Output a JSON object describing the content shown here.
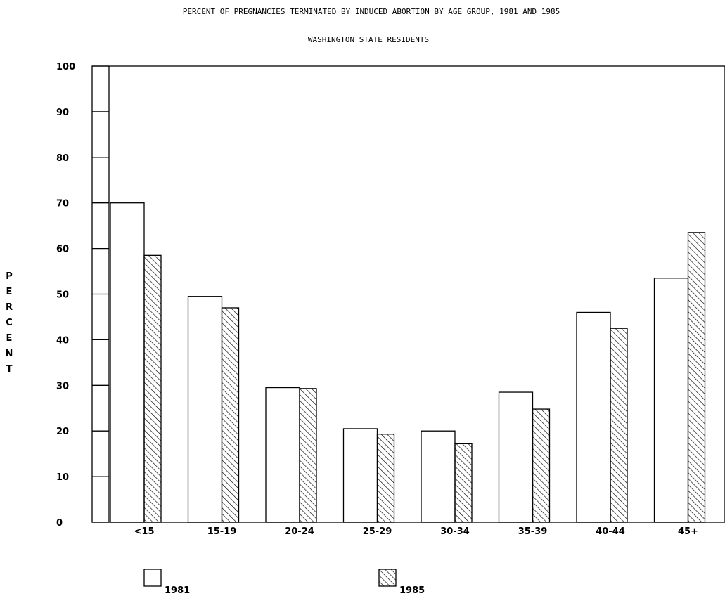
{
  "chart_data": {
    "type": "bar",
    "title": "PERCENT OF PREGNANCIES TERMINATED BY INDUCED ABORTION BY AGE GROUP, 1981 AND 1985",
    "subtitle": "WASHINGTON STATE RESIDENTS",
    "xlabel": "",
    "ylabel": "PERCENT",
    "ylim": [
      0,
      100
    ],
    "yticks": [
      "0",
      "10",
      "20",
      "30",
      "40",
      "50",
      "60",
      "70",
      "80",
      "90",
      "100"
    ],
    "categories": [
      "<15",
      "15-19",
      "20-24",
      "25-29",
      "30-34",
      "35-39",
      "40-44",
      "45+"
    ],
    "series": [
      {
        "name": "1981",
        "values": [
          70.0,
          49.5,
          29.5,
          20.5,
          20.0,
          28.5,
          46.0,
          53.5
        ],
        "fill": "none"
      },
      {
        "name": "1985",
        "values": [
          58.5,
          47.0,
          29.3,
          19.3,
          17.2,
          24.8,
          42.5,
          63.5
        ],
        "fill": "hatched"
      }
    ],
    "legend_position": "bottom",
    "grid": false
  },
  "colors": {
    "stroke": "#000000",
    "background": "#ffffff"
  }
}
